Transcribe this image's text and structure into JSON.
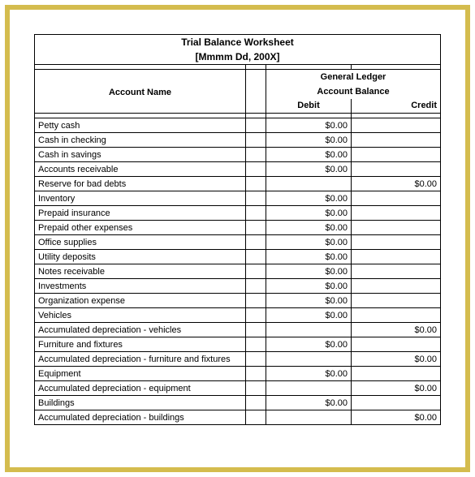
{
  "title": "Trial Balance Worksheet",
  "date_placeholder": "[Mmmm Dd, 200X]",
  "headers": {
    "ledger_title": "General Ledger",
    "balance_title": "Account Balance",
    "account_name": "Account Name",
    "debit": "Debit",
    "credit": "Credit"
  },
  "rows": [
    {
      "name": "Petty cash",
      "debit": "$0.00",
      "credit": ""
    },
    {
      "name": "Cash in checking",
      "debit": "$0.00",
      "credit": ""
    },
    {
      "name": "Cash in savings",
      "debit": "$0.00",
      "credit": ""
    },
    {
      "name": "Accounts receivable",
      "debit": "$0.00",
      "credit": ""
    },
    {
      "name": "Reserve for bad debts",
      "debit": "",
      "credit": "$0.00"
    },
    {
      "name": "Inventory",
      "debit": "$0.00",
      "credit": ""
    },
    {
      "name": "Prepaid insurance",
      "debit": "$0.00",
      "credit": ""
    },
    {
      "name": "Prepaid other expenses",
      "debit": "$0.00",
      "credit": ""
    },
    {
      "name": "Office supplies",
      "debit": "$0.00",
      "credit": ""
    },
    {
      "name": "Utility deposits",
      "debit": "$0.00",
      "credit": ""
    },
    {
      "name": "Notes receivable",
      "debit": "$0.00",
      "credit": ""
    },
    {
      "name": "Investments",
      "debit": "$0.00",
      "credit": ""
    },
    {
      "name": "Organization expense",
      "debit": "$0.00",
      "credit": ""
    },
    {
      "name": "Vehicles",
      "debit": "$0.00",
      "credit": ""
    },
    {
      "name": "Accumulated depreciation - vehicles",
      "debit": "",
      "credit": "$0.00"
    },
    {
      "name": "Furniture and fixtures",
      "debit": "$0.00",
      "credit": ""
    },
    {
      "name": "Accumulated depreciation - furniture and fixtures",
      "debit": "",
      "credit": "$0.00"
    },
    {
      "name": "Equipment",
      "debit": "$0.00",
      "credit": ""
    },
    {
      "name": "Accumulated depreciation - equipment",
      "debit": "",
      "credit": "$0.00"
    },
    {
      "name": "Buildings",
      "debit": "$0.00",
      "credit": ""
    },
    {
      "name": "Accumulated depreciation - buildings",
      "debit": "",
      "credit": "$0.00"
    }
  ],
  "style": {
    "frame_border_color": "#d4bc4e",
    "cell_border_color": "#000000",
    "text_color": "#000000",
    "background_color": "#ffffff",
    "font_size_body": 11,
    "font_size_title": 12
  }
}
